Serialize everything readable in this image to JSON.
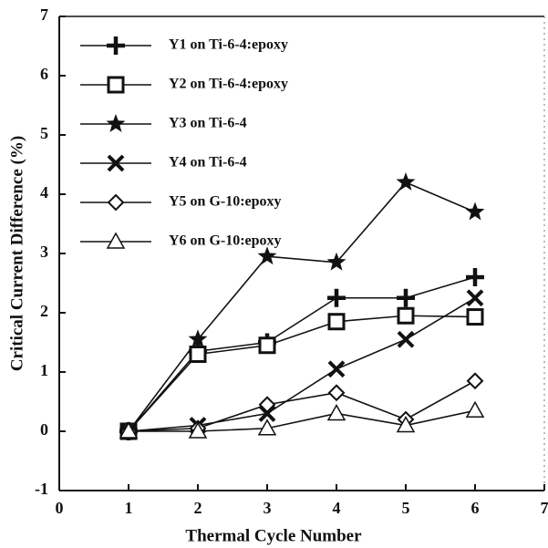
{
  "chart_data": {
    "type": "line",
    "xlabel": "Thermal Cycle Number",
    "ylabel": "Critical Current Difference (%)",
    "x": [
      1,
      2,
      3,
      4,
      5,
      6
    ],
    "series": [
      {
        "name": "Y1 on Ti-6-4:epoxy",
        "color": "#111111",
        "marker": "plus",
        "values": [
          0,
          1.35,
          1.5,
          2.25,
          2.25,
          2.6
        ]
      },
      {
        "name": "Y2 on Ti-6-4:epoxy",
        "color": "#111111",
        "marker": "square",
        "values": [
          0,
          1.3,
          1.45,
          1.85,
          1.95,
          1.93
        ]
      },
      {
        "name": "Y3 on Ti-6-4",
        "color": "#111111",
        "marker": "star",
        "values": [
          0,
          1.55,
          2.95,
          2.85,
          4.2,
          3.7
        ]
      },
      {
        "name": "Y4 on Ti-6-4",
        "color": "#111111",
        "marker": "cross",
        "values": [
          0,
          0.1,
          0.3,
          1.05,
          1.55,
          2.25
        ]
      },
      {
        "name": "Y5 on G-10:epoxy",
        "color": "#111111",
        "marker": "diamond",
        "values": [
          0,
          0.05,
          0.45,
          0.65,
          0.2,
          0.85
        ]
      },
      {
        "name": "Y6 on G-10:epoxy",
        "color": "#111111",
        "marker": "triangle",
        "values": [
          0,
          0,
          0.05,
          0.3,
          0.1,
          0.35
        ]
      }
    ],
    "xlim": [
      0,
      7
    ],
    "xticks": [
      0,
      1,
      2,
      3,
      4,
      5,
      6,
      7
    ],
    "ylim": [
      -1,
      7
    ],
    "yticks": [
      -1,
      0,
      1,
      2,
      3,
      4,
      5,
      6,
      7
    ],
    "legend": "upper left",
    "grid": false
  }
}
